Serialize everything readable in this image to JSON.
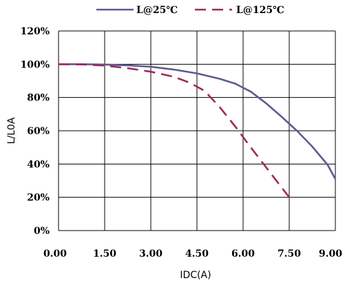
{
  "chart_data": {
    "type": "line",
    "title": "",
    "xlabel": "IDC(A)",
    "ylabel": "L/L0A",
    "xlim": [
      0,
      9
    ],
    "ylim": [
      0,
      120
    ],
    "grid": true,
    "legend_position": "top",
    "x_ticks": [
      "0.00",
      "1.50",
      "3.00",
      "4.50",
      "6.00",
      "7.50",
      "9.00"
    ],
    "y_ticks": [
      "0%",
      "20%",
      "40%",
      "60%",
      "80%",
      "100%",
      "120%"
    ],
    "series": [
      {
        "name": "L@25℃",
        "style": "solid",
        "color": "#5c5a92",
        "x": [
          0,
          0.75,
          1.5,
          2.25,
          3.0,
          3.75,
          4.5,
          5.25,
          5.75,
          6.25,
          6.75,
          7.25,
          7.75,
          8.25,
          8.75,
          9.0
        ],
        "y": [
          100,
          100,
          99.8,
          99.3,
          98.5,
          96.8,
          94.5,
          91.2,
          88.3,
          83.5,
          76.5,
          68.5,
          60,
          50.5,
          39.5,
          31
        ]
      },
      {
        "name": "L@125℃",
        "style": "dashed",
        "color": "#a0275c",
        "x": [
          0,
          0.75,
          1.5,
          2.25,
          3.0,
          3.75,
          4.25,
          4.75,
          5.25,
          5.75,
          6.25,
          6.75,
          7.25,
          7.5
        ],
        "y": [
          100,
          99.9,
          99.2,
          97.6,
          95.5,
          92.5,
          89,
          84,
          74,
          62.5,
          50,
          38,
          26,
          20
        ]
      }
    ]
  },
  "colors": {
    "grid": "#000000",
    "background": "#ffffff"
  }
}
